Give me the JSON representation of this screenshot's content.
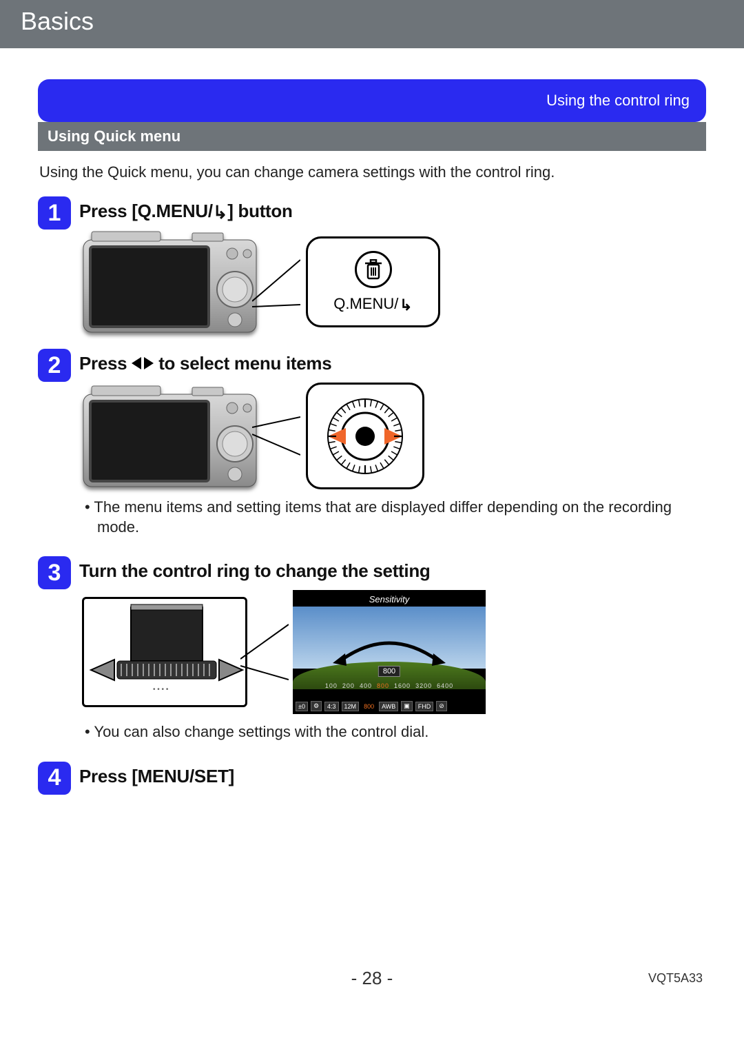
{
  "header": {
    "title": "Basics"
  },
  "banner": {
    "right_label": "Using the control ring"
  },
  "subheader": {
    "title": "Using Quick menu"
  },
  "intro": "Using the Quick menu, you can change camera settings with the control ring.",
  "steps": [
    {
      "num": "1",
      "title_pre": "Press [Q.MENU/",
      "title_post": "] button",
      "callout": {
        "icon": "trash",
        "label": "Q.MENU/"
      }
    },
    {
      "num": "2",
      "title_pre": "Press ",
      "title_post": " to select menu items",
      "note": "The menu items and setting items that are displayed differ depending on the recording mode."
    },
    {
      "num": "3",
      "title": "Turn the control ring to change the setting",
      "lcd": {
        "top": "Sensitivity",
        "value": "800",
        "scale": [
          "100",
          "200",
          "400",
          "800",
          "1600",
          "3200",
          "6400"
        ],
        "icons": [
          "±0",
          "⚙",
          "4:3",
          "12M",
          "800",
          "AWB",
          "▣",
          "FHD",
          "⊘"
        ]
      },
      "note": "You can also change settings with the control dial."
    },
    {
      "num": "4",
      "title": "Press [MENU/SET]"
    }
  ],
  "footer": {
    "page": "- 28 -",
    "docid": "VQT5A33"
  },
  "colors": {
    "header_bg": "#6e7479",
    "accent": "#2a2af0",
    "dial_accent": "#f0662a"
  }
}
